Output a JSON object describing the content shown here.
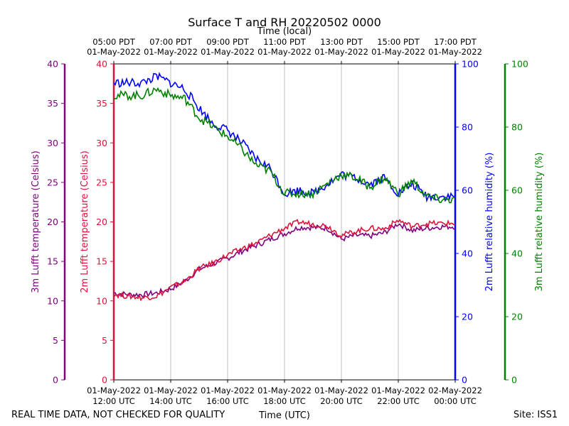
{
  "chart_data": {
    "type": "line",
    "title": "Surface T and RH 20220502 0000",
    "top_axis_label": "Time (local)",
    "bottom_axis_label": "Time (UTC)",
    "footer_left": "REAL TIME DATA, NOT CHECKED FOR QUALITY",
    "footer_right": "Site: ISS1",
    "x_range_hours": [
      12,
      24
    ],
    "top_ticks": [
      {
        "hour": 12,
        "line1": "05:00 PDT",
        "line2": "01-May-2022"
      },
      {
        "hour": 14,
        "line1": "07:00 PDT",
        "line2": "01-May-2022"
      },
      {
        "hour": 16,
        "line1": "09:00 PDT",
        "line2": "01-May-2022"
      },
      {
        "hour": 18,
        "line1": "11:00 PDT",
        "line2": "01-May-2022"
      },
      {
        "hour": 20,
        "line1": "13:00 PDT",
        "line2": "01-May-2022"
      },
      {
        "hour": 22,
        "line1": "15:00 PDT",
        "line2": "01-May-2022"
      },
      {
        "hour": 24,
        "line1": "17:00 PDT",
        "line2": "01-May-2022"
      }
    ],
    "bottom_ticks": [
      {
        "hour": 12,
        "line1": "01-May-2022",
        "line2": "12:00 UTC"
      },
      {
        "hour": 14,
        "line1": "01-May-2022",
        "line2": "14:00 UTC"
      },
      {
        "hour": 16,
        "line1": "01-May-2022",
        "line2": "16:00 UTC"
      },
      {
        "hour": 18,
        "line1": "01-May-2022",
        "line2": "18:00 UTC"
      },
      {
        "hour": 20,
        "line1": "01-May-2022",
        "line2": "20:00 UTC"
      },
      {
        "hour": 22,
        "line1": "01-May-2022",
        "line2": "22:00 UTC"
      },
      {
        "hour": 24,
        "line1": "02-May-2022",
        "line2": "00:00 UTC"
      }
    ],
    "axes": [
      {
        "id": "t3m",
        "label": "3m Lufft temperature (Celsius)",
        "side": "left-outer",
        "range": [
          0,
          40
        ],
        "ticks": [
          0,
          5,
          10,
          15,
          20,
          25,
          30,
          35,
          40
        ],
        "color": "#800080"
      },
      {
        "id": "t2m",
        "label": "2m Lufft temperature (Celsius)",
        "side": "left-inner",
        "range": [
          0,
          40
        ],
        "ticks": [
          0,
          5,
          10,
          15,
          20,
          25,
          30,
          35,
          40
        ],
        "color": "#dc143c"
      },
      {
        "id": "rh2m",
        "label": "2m Lufft relative humidity (%)",
        "side": "right-inner",
        "range": [
          0,
          100
        ],
        "ticks": [
          0,
          20,
          40,
          60,
          80,
          100
        ],
        "color": "#0000ff"
      },
      {
        "id": "rh3m",
        "label": "3m Lufft relative humidity (%)",
        "side": "right-outer",
        "range": [
          0,
          100
        ],
        "ticks": [
          0,
          20,
          40,
          60,
          80,
          100
        ],
        "color": "#008000"
      }
    ],
    "series": [
      {
        "name": "3m Lufft temperature",
        "axis": "t3m",
        "color": "#800080",
        "x": [
          12,
          12.5,
          13,
          13.5,
          14,
          14.5,
          15,
          15.5,
          16,
          16.5,
          17,
          17.5,
          18,
          18.5,
          19,
          19.5,
          20,
          20.5,
          21,
          21.5,
          22,
          22.5,
          23,
          23.5,
          24
        ],
        "y": [
          11.0,
          10.8,
          10.8,
          11.0,
          11.5,
          12.5,
          14.0,
          14.7,
          15.4,
          16.3,
          17.0,
          17.8,
          18.5,
          19.3,
          19.3,
          19.2,
          17.8,
          18.3,
          18.2,
          18.6,
          19.8,
          18.9,
          19.2,
          19.4,
          19.4
        ]
      },
      {
        "name": "2m Lufft temperature",
        "axis": "t2m",
        "color": "#dc143c",
        "x": [
          12,
          12.5,
          13,
          13.5,
          14,
          14.5,
          15,
          15.5,
          16,
          16.5,
          17,
          17.5,
          18,
          18.5,
          19,
          19.5,
          20,
          20.5,
          21,
          21.5,
          22,
          22.5,
          23,
          23.5,
          24
        ],
        "y": [
          10.8,
          10.6,
          10.4,
          10.6,
          11.7,
          12.5,
          14.1,
          14.8,
          15.8,
          16.6,
          17.3,
          18.3,
          19.2,
          20.0,
          19.7,
          19.5,
          18.3,
          18.8,
          19.2,
          19.1,
          20.2,
          19.4,
          19.8,
          19.8,
          19.8
        ]
      },
      {
        "name": "2m Lufft relative humidity",
        "axis": "rh2m",
        "color": "#0000ff",
        "x": [
          12,
          12.5,
          13,
          13.5,
          14,
          14.5,
          15,
          15.5,
          16,
          16.5,
          17,
          17.5,
          18,
          18.5,
          19,
          19.5,
          20,
          20.5,
          21,
          21.5,
          22,
          22.5,
          23,
          23.5,
          24
        ],
        "y": [
          94,
          94,
          94,
          96,
          94,
          92,
          86,
          81,
          79,
          75,
          70,
          67,
          59,
          60,
          59,
          62,
          65,
          64,
          62,
          64,
          59,
          62,
          58,
          58,
          58
        ]
      },
      {
        "name": "3m Lufft relative humidity",
        "axis": "rh3m",
        "color": "#008000",
        "x": [
          12,
          12.5,
          13,
          13.5,
          14,
          14.5,
          15,
          15.5,
          16,
          16.5,
          17,
          17.5,
          18,
          18.5,
          19,
          19.5,
          20,
          20.5,
          21,
          21.5,
          22,
          22.5,
          23,
          23.5,
          24
        ],
        "y": [
          90,
          90,
          90,
          92,
          90,
          89,
          83,
          80,
          77,
          73,
          68,
          66,
          59,
          59,
          59,
          62,
          65,
          64,
          61,
          64,
          59,
          63,
          58,
          57,
          57
        ]
      }
    ]
  }
}
